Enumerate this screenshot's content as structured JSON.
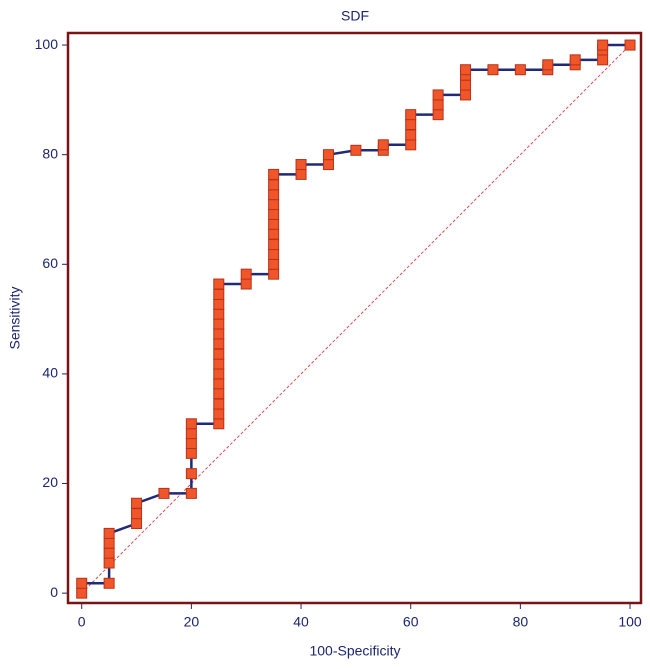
{
  "chart_data": {
    "type": "roc",
    "title": "SDF",
    "x_label": "100-Specificity",
    "y_label": "Sensitivity",
    "x": [
      0,
      0,
      5,
      5,
      5,
      5,
      5,
      10,
      10,
      10,
      15,
      20,
      20,
      20,
      20,
      20,
      20,
      25,
      25,
      25,
      25,
      25,
      25,
      25,
      25,
      25,
      25,
      25,
      25,
      25,
      25,
      25,
      30,
      30,
      35,
      35,
      35,
      35,
      35,
      35,
      35,
      35,
      35,
      35,
      35,
      40,
      40,
      45,
      45,
      50,
      55,
      55,
      60,
      60,
      60,
      60,
      65,
      65,
      65,
      70,
      70,
      70,
      70,
      75,
      80,
      85,
      85,
      90,
      90,
      95,
      95,
      95,
      100
    ],
    "values": [
      0,
      1.8,
      1.8,
      5.5,
      7.3,
      9.1,
      10.9,
      12.7,
      14.5,
      16.4,
      18.2,
      18.2,
      21.8,
      25.5,
      27.3,
      29.1,
      30.9,
      30.9,
      32.7,
      34.5,
      36.4,
      38.2,
      40,
      41.8,
      43.6,
      45.5,
      47.3,
      49.1,
      50.9,
      52.7,
      54.5,
      56.4,
      56.4,
      58.2,
      58.2,
      60,
      61.8,
      63.6,
      65.5,
      67.3,
      69.1,
      70.9,
      72.7,
      74.5,
      76.4,
      76.4,
      78.2,
      78.2,
      80,
      80.8,
      80.8,
      81.8,
      81.8,
      83.6,
      85.5,
      87.3,
      87.3,
      89.1,
      90.9,
      90.9,
      92.7,
      94.5,
      95.5,
      95.5,
      95.5,
      95.5,
      96.4,
      96.4,
      97.3,
      97.3,
      99.1,
      100,
      100
    ],
    "color": "#1f2a78",
    "marker_color": "#f0562a",
    "diagonal": true,
    "diagonal_color": "#e05050",
    "xlim": [
      -2.5,
      102
    ],
    "ylim": [
      -1.8,
      102.2
    ],
    "xticks": [
      0,
      20,
      40,
      60,
      80,
      100
    ],
    "yticks": [
      0,
      20,
      40,
      60,
      80,
      100
    ]
  }
}
